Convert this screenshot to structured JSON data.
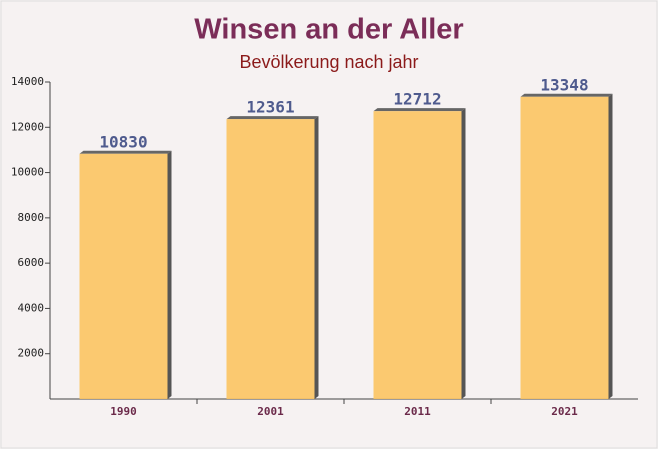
{
  "chart_data": {
    "type": "bar",
    "title": "Winsen an der Aller",
    "subtitle": "Bevölkerung nach jahr",
    "categories": [
      "1990",
      "2001",
      "2011",
      "2021"
    ],
    "values": [
      10830,
      12361,
      12712,
      13348
    ],
    "color": "#fcc462",
    "ylim": [
      0,
      14000
    ],
    "yticks": [
      2000,
      4000,
      6000,
      8000,
      10000,
      12000,
      14000
    ]
  }
}
